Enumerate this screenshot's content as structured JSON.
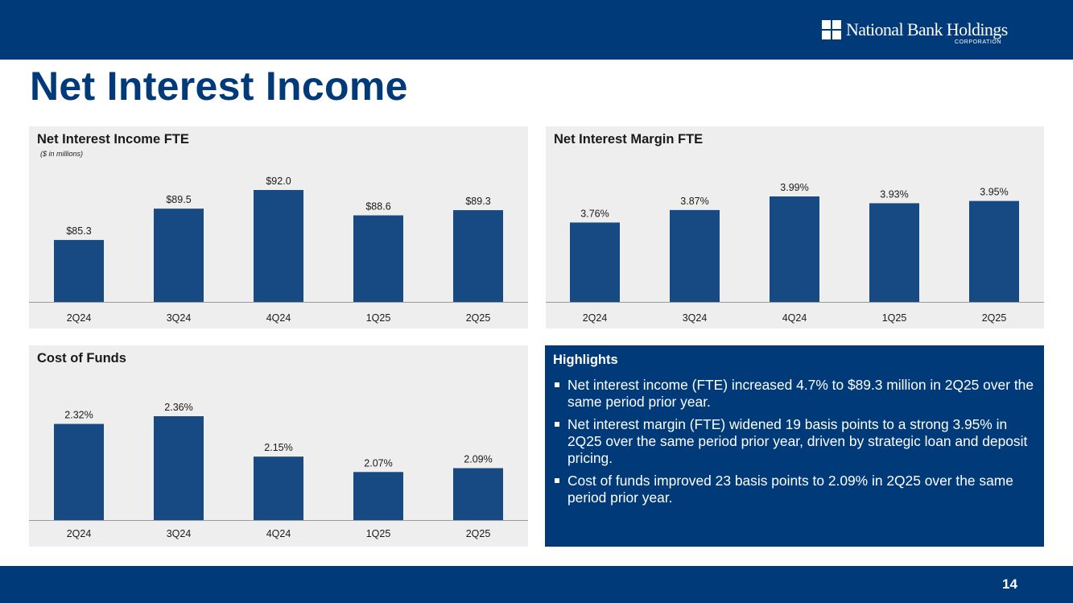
{
  "brand": {
    "name": "National Bank Holdings",
    "sub": "CORPORATION",
    "primary_color": "#003a78",
    "bar_color": "#174a82",
    "panel_color": "#eeeeee"
  },
  "title": "Net Interest Income",
  "page_number": "14",
  "chart_data": [
    {
      "id": "nii",
      "type": "bar",
      "title": "Net Interest Income FTE",
      "subtitle": "($ in millions)",
      "categories": [
        "2Q24",
        "3Q24",
        "4Q24",
        "1Q25",
        "2Q25"
      ],
      "values": [
        85.3,
        89.5,
        92.0,
        88.6,
        89.3
      ],
      "labels": [
        "$85.3",
        "$89.5",
        "$92.0",
        "$88.6",
        "$89.3"
      ],
      "ylim": [
        77,
        92
      ],
      "xlabel": "",
      "ylabel": ""
    },
    {
      "id": "nim",
      "type": "bar",
      "title": "Net Interest Margin FTE",
      "categories": [
        "2Q24",
        "3Q24",
        "4Q24",
        "1Q25",
        "2Q25"
      ],
      "values": [
        3.76,
        3.87,
        3.99,
        3.93,
        3.95
      ],
      "labels": [
        "3.76%",
        "3.87%",
        "3.99%",
        "3.93%",
        "3.95%"
      ],
      "ylim": [
        3.06,
        3.99
      ],
      "xlabel": "",
      "ylabel": ""
    },
    {
      "id": "cof",
      "type": "bar",
      "title": "Cost of Funds",
      "categories": [
        "2Q24",
        "3Q24",
        "4Q24",
        "1Q25",
        "2Q25"
      ],
      "values": [
        2.32,
        2.36,
        2.15,
        2.07,
        2.09
      ],
      "labels": [
        "2.32%",
        "2.36%",
        "2.15%",
        "2.07%",
        "2.09%"
      ],
      "ylim": [
        1.82,
        2.36
      ],
      "xlabel": "",
      "ylabel": ""
    }
  ],
  "highlights": {
    "title": "Highlights",
    "items": [
      "Net interest income (FTE) increased 4.7% to $89.3 million in 2Q25 over the same period prior year.",
      "Net interest margin (FTE) widened 19 basis points to a strong 3.95% in 2Q25 over the same period prior year, driven by strategic loan and deposit pricing.",
      "Cost of funds improved 23 basis points to 2.09% in 2Q25 over the same period prior year."
    ]
  }
}
